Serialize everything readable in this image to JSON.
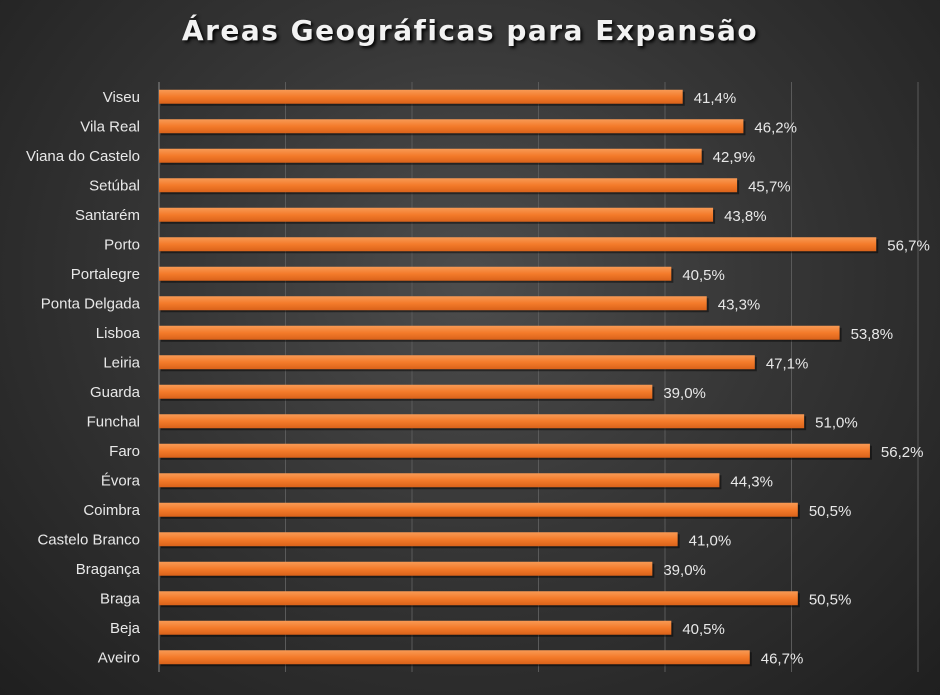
{
  "chart_data": {
    "type": "bar",
    "orientation": "horizontal",
    "title": "Áreas Geográficas para Expansão",
    "xlabel": "",
    "ylabel": "",
    "xlim": [
      0,
      60
    ],
    "grid": true,
    "categories": [
      "Viseu",
      "Vila Real",
      "Viana do Castelo",
      "Setúbal",
      "Santarém",
      "Porto",
      "Portalegre",
      "Ponta Delgada",
      "Lisboa",
      "Leiria",
      "Guarda",
      "Funchal",
      "Faro",
      "Évora",
      "Coimbra",
      "Castelo Branco",
      "Bragança",
      "Braga",
      "Beja",
      "Aveiro"
    ],
    "values": [
      41.4,
      46.2,
      42.9,
      45.7,
      43.8,
      56.7,
      40.5,
      43.3,
      53.8,
      47.1,
      39.0,
      51.0,
      56.2,
      44.3,
      50.5,
      41.0,
      39.0,
      50.5,
      40.5,
      46.7
    ],
    "labels": [
      "41,4%",
      "46,2%",
      "42,9%",
      "45,7%",
      "43,8%",
      "56,7%",
      "40,5%",
      "43,3%",
      "53,8%",
      "47,1%",
      "39,0%",
      "51,0%",
      "56,2%",
      "44,3%",
      "50,5%",
      "41,0%",
      "39,0%",
      "50,5%",
      "40,5%",
      "46,7%"
    ],
    "colors": {
      "bar": "#f47b2a",
      "bar_light": "#f89a55",
      "grid": "#5a5a5a",
      "text": "#e8e8e8"
    }
  }
}
